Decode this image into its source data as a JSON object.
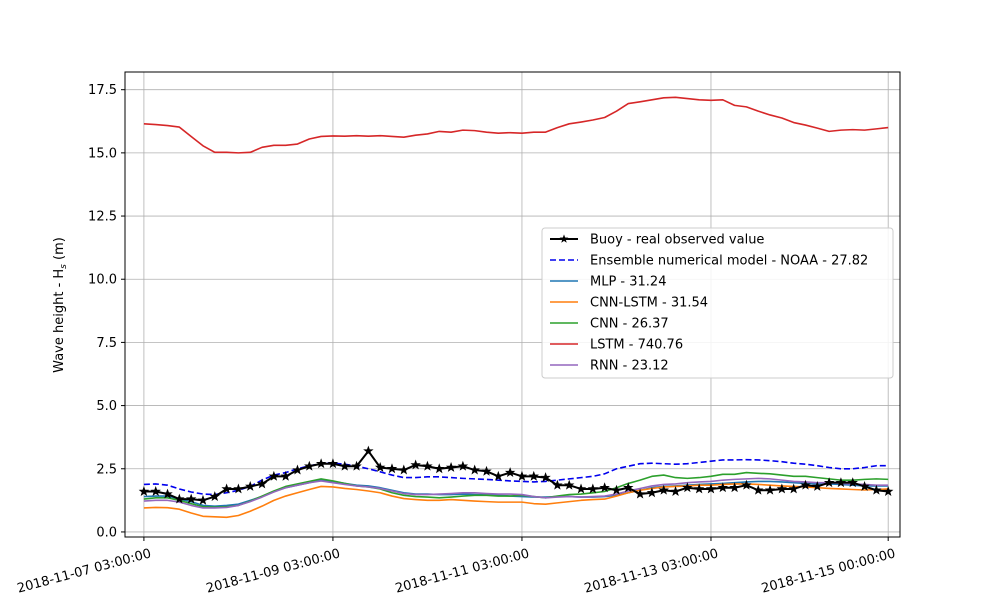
{
  "chart_data": {
    "type": "line",
    "title": "",
    "xlabel": "",
    "ylabel": "Wave height - H",
    "ylabel_sub": "s",
    "ylabel_unit": " (m)",
    "ylim": [
      -0.2,
      18.2
    ],
    "yticks": [
      0.0,
      2.5,
      5.0,
      7.5,
      10.0,
      12.5,
      15.0,
      17.5
    ],
    "ytick_labels": [
      "0.0",
      "2.5",
      "5.0",
      "7.5",
      "10.0",
      "12.5",
      "15.0",
      "17.5"
    ],
    "xlim": [
      -0.2,
      8.0
    ],
    "xticks": [
      0.0,
      2.0,
      4.0,
      6.0,
      7.875
    ],
    "xtick_labels": [
      "2018-11-07 03:00:00",
      "2018-11-09 03:00:00",
      "2018-11-11 03:00:00",
      "2018-11-13 03:00:00",
      "2018-11-15 00:00:00"
    ],
    "grid": true,
    "legend_position": "center-right",
    "x": [
      0.0,
      0.125,
      0.25,
      0.375,
      0.5,
      0.625,
      0.75,
      0.875,
      1.0,
      1.125,
      1.25,
      1.375,
      1.5,
      1.625,
      1.75,
      1.875,
      2.0,
      2.125,
      2.25,
      2.375,
      2.5,
      2.625,
      2.75,
      2.875,
      3.0,
      3.125,
      3.25,
      3.375,
      3.5,
      3.625,
      3.75,
      3.875,
      4.0,
      4.125,
      4.25,
      4.375,
      4.5,
      4.625,
      4.75,
      4.875,
      5.0,
      5.125,
      5.25,
      5.375,
      5.5,
      5.625,
      5.75,
      5.875,
      6.0,
      6.125,
      6.25,
      6.375,
      6.5,
      6.625,
      6.75,
      6.875,
      7.0,
      7.125,
      7.25,
      7.375,
      7.5,
      7.625,
      7.75,
      7.875
    ],
    "series": [
      {
        "name": "Buoy - real observed value",
        "color": "#000000",
        "style": "solid-star",
        "values": [
          1.6,
          1.6,
          1.5,
          1.3,
          1.3,
          1.25,
          1.4,
          1.7,
          1.7,
          1.8,
          1.9,
          2.2,
          2.2,
          2.45,
          2.6,
          2.7,
          2.7,
          2.6,
          2.6,
          3.2,
          2.55,
          2.5,
          2.45,
          2.65,
          2.6,
          2.5,
          2.55,
          2.6,
          2.45,
          2.4,
          2.2,
          2.35,
          2.2,
          2.2,
          2.15,
          1.85,
          1.85,
          1.7,
          1.7,
          1.75,
          1.65,
          1.75,
          1.5,
          1.55,
          1.65,
          1.6,
          1.75,
          1.7,
          1.7,
          1.75,
          1.75,
          1.85,
          1.65,
          1.65,
          1.7,
          1.7,
          1.85,
          1.8,
          1.95,
          1.95,
          1.95,
          1.8,
          1.65,
          1.6
        ]
      },
      {
        "name": "Ensemble numerical model - NOAA - 27.82",
        "color": "#0000ee",
        "style": "dashed",
        "values": [
          1.88,
          1.9,
          1.85,
          1.7,
          1.58,
          1.5,
          1.48,
          1.55,
          1.65,
          1.8,
          2.05,
          2.25,
          2.35,
          2.5,
          2.62,
          2.7,
          2.72,
          2.68,
          2.6,
          2.5,
          2.38,
          2.25,
          2.15,
          2.15,
          2.18,
          2.18,
          2.15,
          2.12,
          2.1,
          2.08,
          2.05,
          2.02,
          2.0,
          1.98,
          2.0,
          2.05,
          2.1,
          2.15,
          2.2,
          2.3,
          2.5,
          2.6,
          2.7,
          2.72,
          2.7,
          2.68,
          2.7,
          2.75,
          2.8,
          2.85,
          2.85,
          2.86,
          2.85,
          2.82,
          2.78,
          2.72,
          2.68,
          2.62,
          2.55,
          2.5,
          2.5,
          2.55,
          2.62,
          2.62
        ]
      },
      {
        "name": "MLP - 31.24",
        "color": "#1f77b4",
        "style": "solid",
        "values": [
          1.4,
          1.42,
          1.42,
          1.3,
          1.2,
          1.05,
          1.02,
          1.05,
          1.1,
          1.25,
          1.4,
          1.6,
          1.75,
          1.85,
          1.95,
          2.05,
          2.0,
          1.92,
          1.85,
          1.82,
          1.75,
          1.65,
          1.55,
          1.5,
          1.5,
          1.48,
          1.48,
          1.5,
          1.48,
          1.47,
          1.45,
          1.42,
          1.4,
          1.38,
          1.38,
          1.4,
          1.4,
          1.38,
          1.38,
          1.4,
          1.45,
          1.55,
          1.65,
          1.75,
          1.8,
          1.82,
          1.85,
          1.88,
          1.9,
          1.92,
          1.95,
          1.98,
          2.0,
          2.0,
          1.98,
          1.95,
          1.92,
          1.9,
          1.9,
          1.88,
          1.85,
          1.82,
          1.82,
          1.82
        ]
      },
      {
        "name": "CNN-LSTM - 31.54",
        "color": "#ff7f0e",
        "style": "solid",
        "values": [
          0.95,
          0.97,
          0.96,
          0.9,
          0.75,
          0.62,
          0.6,
          0.58,
          0.65,
          0.82,
          1.02,
          1.25,
          1.42,
          1.55,
          1.68,
          1.8,
          1.78,
          1.72,
          1.68,
          1.62,
          1.55,
          1.42,
          1.32,
          1.28,
          1.25,
          1.25,
          1.28,
          1.25,
          1.22,
          1.2,
          1.18,
          1.18,
          1.18,
          1.12,
          1.1,
          1.15,
          1.2,
          1.25,
          1.28,
          1.3,
          1.42,
          1.55,
          1.65,
          1.72,
          1.78,
          1.8,
          1.82,
          1.85,
          1.85,
          1.88,
          1.9,
          1.9,
          1.88,
          1.85,
          1.82,
          1.8,
          1.78,
          1.75,
          1.72,
          1.7,
          1.68,
          1.66,
          1.68,
          1.7
        ]
      },
      {
        "name": "CNN - 26.37",
        "color": "#2ca02c",
        "style": "solid",
        "values": [
          1.3,
          1.35,
          1.35,
          1.25,
          1.12,
          1.0,
          0.98,
          1.0,
          1.05,
          1.22,
          1.42,
          1.62,
          1.8,
          1.9,
          2.0,
          2.1,
          2.02,
          1.92,
          1.82,
          1.78,
          1.7,
          1.55,
          1.45,
          1.4,
          1.38,
          1.35,
          1.38,
          1.42,
          1.45,
          1.45,
          1.42,
          1.42,
          1.45,
          1.4,
          1.35,
          1.42,
          1.48,
          1.5,
          1.55,
          1.6,
          1.75,
          1.92,
          2.05,
          2.2,
          2.25,
          2.15,
          2.12,
          2.15,
          2.2,
          2.28,
          2.28,
          2.35,
          2.32,
          2.3,
          2.25,
          2.2,
          2.2,
          2.15,
          2.1,
          2.05,
          2.05,
          2.08,
          2.1,
          2.08
        ]
      },
      {
        "name": "LSTM - 740.76",
        "color": "#d62728",
        "style": "solid",
        "values": [
          16.15,
          16.12,
          16.08,
          16.02,
          15.65,
          15.28,
          15.02,
          15.02,
          15.0,
          15.02,
          15.22,
          15.3,
          15.3,
          15.35,
          15.55,
          15.65,
          15.67,
          15.66,
          15.68,
          15.66,
          15.68,
          15.65,
          15.62,
          15.7,
          15.75,
          15.85,
          15.82,
          15.9,
          15.88,
          15.82,
          15.78,
          15.8,
          15.78,
          15.82,
          15.82,
          16.0,
          16.15,
          16.22,
          16.3,
          16.4,
          16.65,
          16.95,
          17.02,
          17.1,
          17.18,
          17.2,
          17.15,
          17.1,
          17.08,
          17.1,
          16.88,
          16.82,
          16.65,
          16.5,
          16.38,
          16.2,
          16.1,
          15.98,
          15.85,
          15.9,
          15.92,
          15.9,
          15.95,
          16.0
        ]
      },
      {
        "name": "RNN - 23.12",
        "color": "#9467bd",
        "style": "solid",
        "values": [
          1.22,
          1.25,
          1.25,
          1.18,
          1.05,
          0.95,
          0.95,
          0.97,
          1.05,
          1.2,
          1.38,
          1.58,
          1.75,
          1.85,
          1.95,
          2.02,
          1.95,
          1.88,
          1.82,
          1.78,
          1.72,
          1.62,
          1.52,
          1.48,
          1.48,
          1.5,
          1.52,
          1.55,
          1.55,
          1.52,
          1.5,
          1.5,
          1.48,
          1.4,
          1.35,
          1.38,
          1.4,
          1.38,
          1.4,
          1.42,
          1.5,
          1.62,
          1.72,
          1.82,
          1.88,
          1.9,
          1.95,
          1.98,
          2.0,
          2.05,
          2.08,
          2.1,
          2.12,
          2.1,
          2.05,
          2.0,
          1.98,
          1.95,
          1.95,
          1.92,
          1.9,
          1.88,
          1.85,
          1.85
        ]
      }
    ]
  }
}
